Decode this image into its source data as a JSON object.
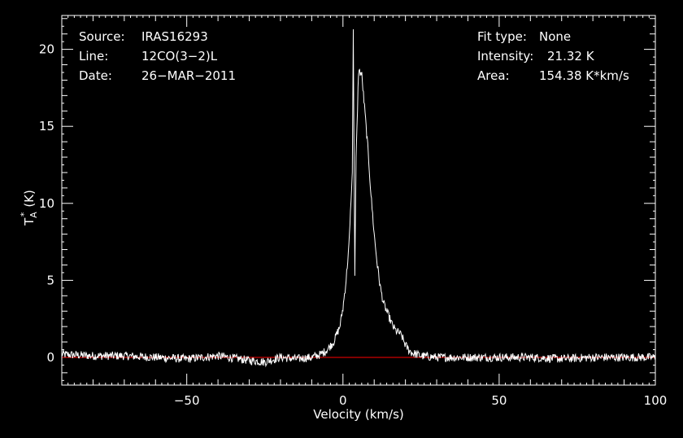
{
  "chart_data": {
    "type": "line",
    "xlabel": "Velocity (km/s)",
    "ylabel_main": "T",
    "ylabel_sub": "A",
    "ylabel_sup": "*",
    "ylabel_unit": "(K)",
    "xlim": [
      -90,
      100
    ],
    "ylim": [
      -1.8,
      22.2
    ],
    "xticks": [
      -50,
      0,
      50,
      100
    ],
    "xtick_labels": [
      "−50",
      "0",
      "50",
      "100"
    ],
    "yticks": [
      0,
      5,
      10,
      15,
      20
    ],
    "ytick_labels": [
      "0",
      "5",
      "10",
      "15",
      "20"
    ],
    "baseline": 0,
    "grid": false,
    "info_left": [
      {
        "key": "Source:",
        "value": "IRAS16293"
      },
      {
        "key": "Line:",
        "value": "12CO(3−2)L"
      },
      {
        "key": "Date:",
        "value": "26−MAR−2011"
      }
    ],
    "info_right": [
      {
        "key": "Fit type:",
        "value": "None"
      },
      {
        "key": "Intensity:",
        "value": "21.32 K"
      },
      {
        "key": "Area:",
        "value": "154.38 K*km/s"
      }
    ],
    "series": [
      {
        "x": [
          -90,
          -80,
          -70,
          -60,
          -50,
          -40,
          -30,
          -25,
          -20,
          -15,
          -10,
          -7,
          -5,
          -3,
          -1,
          0,
          1,
          2,
          3,
          3.3,
          3.8,
          4.2,
          5,
          6,
          7,
          8,
          9,
          10,
          11,
          12,
          13,
          14,
          15,
          16,
          17,
          18,
          19,
          20,
          21,
          22,
          25,
          30,
          40,
          50,
          60,
          70,
          80,
          90,
          100
        ],
        "y": [
          0.2,
          0.1,
          0.1,
          0.0,
          -0.1,
          0.1,
          -0.2,
          -0.3,
          0.0,
          -0.1,
          0.0,
          0.2,
          0.5,
          1.0,
          2.0,
          3.2,
          5.0,
          7.5,
          12.0,
          21.3,
          5.3,
          13.0,
          18.6,
          18.4,
          16.0,
          13.5,
          10.5,
          8.0,
          6.0,
          4.5,
          3.5,
          3.0,
          2.5,
          2.0,
          1.7,
          1.6,
          1.3,
          0.8,
          0.5,
          0.3,
          0.1,
          0.0,
          0.0,
          0.0,
          0.0,
          -0.1,
          0.0,
          0.0,
          0.0
        ],
        "color": "#ffffff"
      }
    ],
    "colors": {
      "background": "#000000",
      "spectrum": "#ffffff",
      "baseline": "#ff0000",
      "frame": "#ffffff"
    }
  }
}
